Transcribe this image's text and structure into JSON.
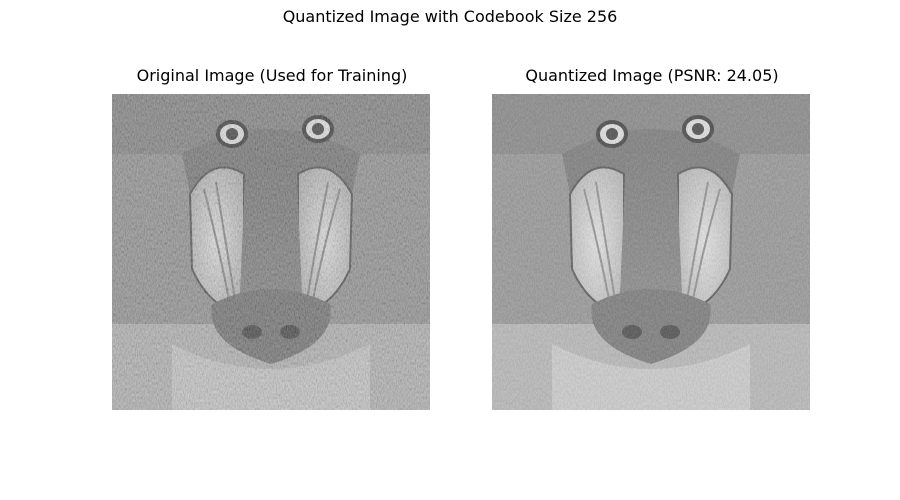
{
  "figure": {
    "suptitle": "Quantized Image with Codebook Size 256"
  },
  "panels": [
    {
      "title": "Original Image (Used for Training)",
      "image": "grayscale photo of a mandrill (baboon) face"
    },
    {
      "title": "Quantized Image (PSNR: 24.05)",
      "image": "vector-quantized grayscale mandrill face"
    }
  ]
}
